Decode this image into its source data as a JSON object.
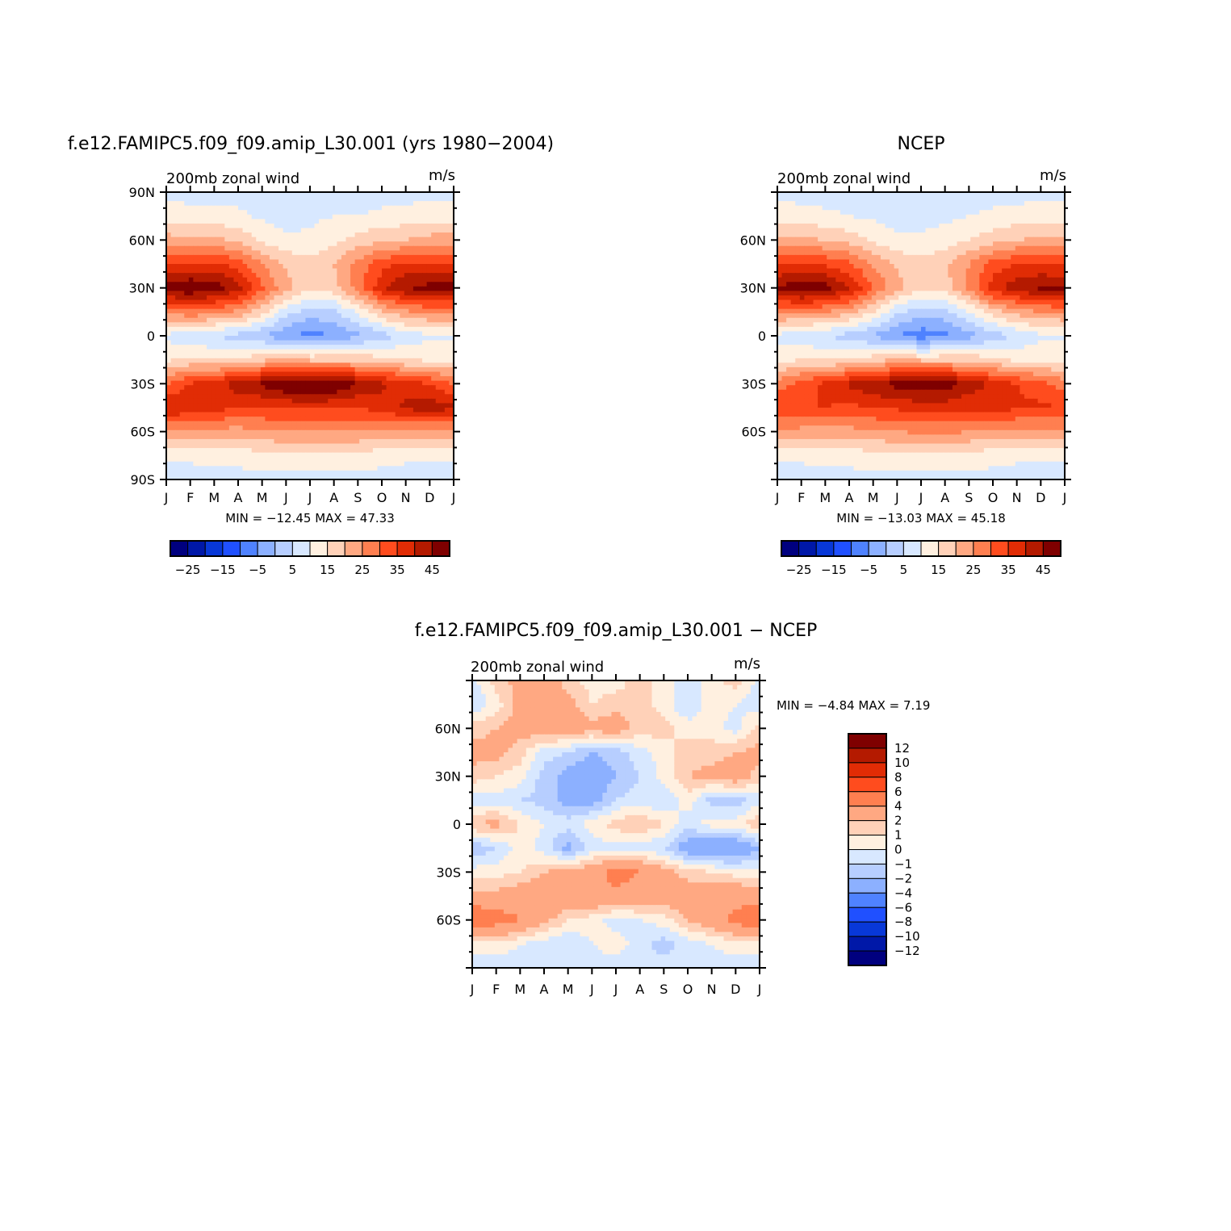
{
  "colors": {
    "main_levels": [
      "#00007f",
      "#0018a8",
      "#0838d8",
      "#2050ff",
      "#4f82ff",
      "#8cb0ff",
      "#b7ceff",
      "#d8e8ff",
      "#fff0e0",
      "#ffd1b8",
      "#ffa882",
      "#ff7f50",
      "#ff4c1e",
      "#e12c05",
      "#b41a00",
      "#7f0000"
    ],
    "diff_levels": [
      "#7f0000",
      "#b41a00",
      "#e12c05",
      "#ff4c1e",
      "#ff7f50",
      "#ffa882",
      "#ffd1b8",
      "#fff0e0",
      "#d8e8ff",
      "#b7ceff",
      "#8cb0ff",
      "#4f82ff",
      "#2050ff",
      "#0838d8",
      "#0018a8",
      "#00007f"
    ]
  },
  "diff_title": "f.e12.FAMIPC5.f09_f09.amip_L30.001 − NCEP",
  "chart_data": [
    {
      "id": "model",
      "type": "heatmap",
      "title": "f.e12.FAMIPC5.f09_f09.amip_L30.001 (yrs 1980−2004)",
      "left_label": "200mb  zonal  wind",
      "right_label": "m/s",
      "x_tick_labels": [
        "J",
        "F",
        "M",
        "A",
        "M",
        "J",
        "J",
        "A",
        "S",
        "O",
        "N",
        "D",
        "J"
      ],
      "y_tick_labels": [
        "90N",
        "60N",
        "30N",
        "0",
        "30S",
        "60S",
        "90S"
      ],
      "y_tick_values": [
        90,
        60,
        30,
        0,
        -30,
        -60,
        -90
      ],
      "ylim": [
        -90,
        90
      ],
      "stats": "MIN =  −12.45  MAX =    47.33",
      "min": -12.45,
      "max": 47.33,
      "colorbar_labels": [
        "−25",
        "−15",
        "−5",
        "5",
        "15",
        "25",
        "35",
        "45"
      ],
      "months": [
        "J",
        "F",
        "M",
        "A",
        "M",
        "J",
        "J",
        "A",
        "S",
        "O",
        "N",
        "D",
        "J"
      ],
      "latitudes": [
        90,
        75,
        60,
        45,
        30,
        15,
        0,
        -15,
        -30,
        -45,
        -60,
        -75,
        -90
      ],
      "values": [
        [
          3,
          3,
          3,
          3,
          3,
          3,
          3,
          3,
          3,
          3,
          3,
          3,
          3
        ],
        [
          8,
          7,
          7,
          6,
          4,
          3,
          4,
          5,
          5,
          6,
          7,
          8,
          8
        ],
        [
          17,
          17,
          16,
          14,
          9,
          6,
          6,
          8,
          12,
          14,
          15,
          17,
          17
        ],
        [
          30,
          31,
          31,
          28,
          20,
          14,
          12,
          15,
          22,
          28,
          31,
          31,
          30
        ],
        [
          43,
          45,
          43,
          37,
          26,
          17,
          11,
          13,
          22,
          34,
          40,
          42,
          43
        ],
        [
          21,
          24,
          22,
          19,
          12,
          2,
          -2,
          -1,
          6,
          15,
          19,
          21,
          21
        ],
        [
          4,
          1,
          0,
          -2,
          -5,
          -9,
          -12,
          -10,
          -6,
          -3,
          2,
          4,
          4
        ],
        [
          9,
          11,
          10,
          10,
          14,
          15,
          14,
          14,
          14,
          12,
          10,
          9,
          9
        ],
        [
          25,
          30,
          33,
          38,
          41,
          45,
          46,
          45,
          40,
          36,
          33,
          30,
          25
        ],
        [
          36,
          34,
          32,
          30,
          30,
          31,
          31,
          31,
          30,
          33,
          36,
          38,
          36
        ],
        [
          18,
          18,
          18,
          18,
          19,
          20,
          20,
          20,
          20,
          19,
          18,
          18,
          18
        ],
        [
          6,
          6,
          7,
          7,
          8,
          9,
          9,
          9,
          8,
          7,
          6,
          6,
          6
        ],
        [
          3,
          3,
          3,
          3,
          3,
          3,
          3,
          3,
          3,
          3,
          3,
          3,
          3
        ]
      ]
    },
    {
      "id": "ncep",
      "type": "heatmap",
      "title": "NCEP",
      "left_label": "200mb  zonal  wind",
      "right_label": "m/s",
      "x_tick_labels": [
        "J",
        "F",
        "M",
        "A",
        "M",
        "J",
        "J",
        "A",
        "S",
        "O",
        "N",
        "D",
        "J"
      ],
      "y_tick_labels": [
        "60N",
        "30N",
        "0",
        "30S",
        "60S"
      ],
      "y_tick_values": [
        60,
        30,
        0,
        -30,
        -60
      ],
      "ylim": [
        -90,
        90
      ],
      "stats": "MIN =  −13.03  MAX =    45.18",
      "min": -13.03,
      "max": 45.18,
      "colorbar_labels": [
        "−25",
        "−15",
        "−5",
        "5",
        "15",
        "25",
        "35",
        "45"
      ],
      "months": [
        "J",
        "F",
        "M",
        "A",
        "M",
        "J",
        "J",
        "A",
        "S",
        "O",
        "N",
        "D",
        "J"
      ],
      "latitudes": [
        90,
        75,
        60,
        45,
        30,
        15,
        0,
        -15,
        -30,
        -45,
        -60,
        -75,
        -90
      ],
      "values": [
        [
          3,
          3,
          3,
          3,
          3,
          3,
          3,
          3,
          3,
          3,
          3,
          3,
          3
        ],
        [
          8,
          7,
          6,
          5,
          4,
          3,
          3,
          4,
          5,
          6,
          7,
          8,
          8
        ],
        [
          16,
          16,
          15,
          13,
          9,
          6,
          6,
          7,
          10,
          13,
          15,
          16,
          16
        ],
        [
          29,
          30,
          29,
          26,
          19,
          14,
          12,
          14,
          20,
          27,
          30,
          30,
          29
        ],
        [
          41,
          44,
          42,
          36,
          25,
          17,
          11,
          13,
          21,
          33,
          38,
          41,
          41
        ],
        [
          21,
          22,
          20,
          17,
          10,
          1,
          -3,
          -2,
          5,
          13,
          17,
          20,
          21
        ],
        [
          4,
          1,
          0,
          -2,
          -6,
          -10,
          -13,
          -11,
          -7,
          -3,
          1,
          4,
          4
        ],
        [
          8,
          10,
          10,
          10,
          13,
          15,
          14,
          14,
          14,
          11,
          9,
          8,
          8
        ],
        [
          22,
          27,
          31,
          36,
          39,
          42,
          44,
          43,
          38,
          34,
          30,
          27,
          22
        ],
        [
          30,
          30,
          30,
          29,
          30,
          31,
          32,
          32,
          31,
          32,
          31,
          31,
          30
        ],
        [
          19,
          18,
          18,
          18,
          19,
          20,
          21,
          21,
          20,
          19,
          18,
          18,
          19
        ],
        [
          6,
          6,
          7,
          7,
          8,
          9,
          9,
          9,
          8,
          7,
          6,
          6,
          6
        ],
        [
          3,
          3,
          3,
          3,
          3,
          3,
          3,
          3,
          3,
          3,
          3,
          3,
          3
        ]
      ]
    },
    {
      "id": "diff",
      "type": "heatmap",
      "title": "",
      "left_label": "200mb  zonal  wind",
      "right_label": "m/s",
      "x_tick_labels": [
        "J",
        "F",
        "M",
        "A",
        "M",
        "J",
        "J",
        "A",
        "S",
        "O",
        "N",
        "D",
        "J"
      ],
      "y_tick_labels": [
        "60N",
        "30N",
        "0",
        "30S",
        "60S"
      ],
      "y_tick_values": [
        60,
        30,
        0,
        -30,
        -60
      ],
      "ylim": [
        -90,
        90
      ],
      "stats": "MIN =    −4.84  MAX =     7.19",
      "min": -4.84,
      "max": 7.19,
      "colorbar_labels": [
        "12",
        "10",
        "8",
        "6",
        "4",
        "2",
        "1",
        "0",
        "−1",
        "−2",
        "−4",
        "−6",
        "−8",
        "−10",
        "−12"
      ],
      "months": [
        "J",
        "F",
        "M",
        "A",
        "M",
        "J",
        "J",
        "A",
        "S",
        "O",
        "N",
        "D",
        "J"
      ],
      "latitudes": [
        90,
        75,
        60,
        45,
        30,
        15,
        0,
        -15,
        -30,
        -45,
        -60,
        -75,
        -90
      ],
      "values": [
        [
          -0.5,
          1.5,
          2.5,
          3.0,
          1.5,
          0.5,
          0.5,
          1.5,
          0.5,
          -0.5,
          0.5,
          1.5,
          -0.5
        ],
        [
          -1.0,
          0.5,
          2.5,
          3.0,
          2.5,
          1.0,
          1.5,
          1.5,
          0.5,
          -1.0,
          0.5,
          0,
          -0.5
        ],
        [
          1.5,
          2.0,
          2.5,
          3.0,
          3.0,
          2.5,
          3.0,
          1.5,
          1.5,
          0.5,
          0.5,
          -0.5,
          1.5
        ],
        [
          2.5,
          2.5,
          1.5,
          -0.5,
          -1.0,
          -2.0,
          -1.5,
          -0.5,
          0.5,
          1.5,
          1.5,
          2.0,
          2.5
        ],
        [
          1.5,
          1.0,
          0.5,
          -1.5,
          -2.5,
          -3.0,
          -2.0,
          -1.0,
          0.5,
          2.0,
          2.5,
          3.0,
          1.5
        ],
        [
          -0.5,
          -0.5,
          -1.0,
          -1.5,
          -2.5,
          -2.5,
          -1.0,
          -0.5,
          -1.0,
          0.5,
          -1.5,
          -1.5,
          -0.5
        ],
        [
          2.0,
          2.5,
          1.0,
          0,
          -0.5,
          0.5,
          1.5,
          2.0,
          1.0,
          -0.5,
          0.5,
          0.5,
          2.0
        ],
        [
          -2.0,
          -1.0,
          0.5,
          -0.5,
          -2.5,
          -0.5,
          -0.5,
          -0.5,
          -1.0,
          -3.0,
          -3.5,
          -3.5,
          -2.0
        ],
        [
          0.5,
          0.5,
          1.0,
          2.0,
          2.5,
          3.0,
          5.0,
          4.0,
          2.5,
          1.5,
          1.0,
          0.5,
          0.5
        ],
        [
          2.5,
          2.5,
          3.0,
          3.5,
          3.0,
          3.5,
          3.5,
          3.0,
          3.0,
          3.0,
          3.0,
          3.5,
          2.5
        ],
        [
          6.0,
          5.0,
          4.0,
          2.5,
          1.0,
          0.5,
          -0.5,
          0,
          0.5,
          2.0,
          3.0,
          4.5,
          6.0
        ],
        [
          0.5,
          0.5,
          0,
          -0.5,
          -1.0,
          0,
          0.5,
          -0.5,
          -1.5,
          -0.5,
          0,
          0.5,
          0.5
        ],
        [
          -0.5,
          -0.5,
          -0.5,
          -0.5,
          -0.5,
          -0.5,
          -0.5,
          -0.5,
          -0.5,
          -0.5,
          -0.5,
          -0.5,
          -0.5
        ]
      ]
    }
  ]
}
